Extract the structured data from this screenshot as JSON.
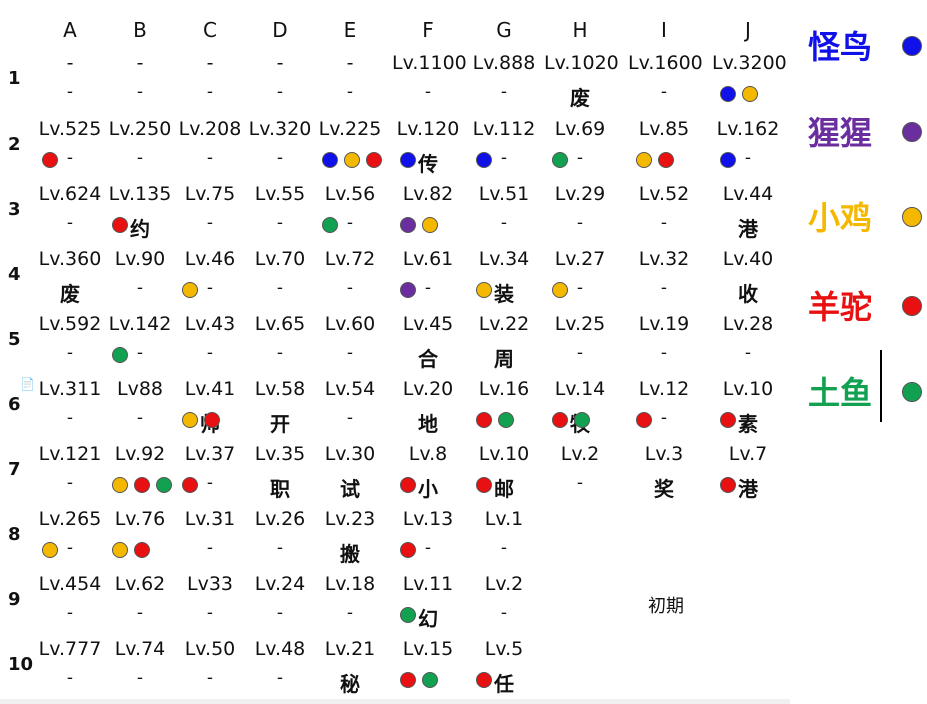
{
  "colors": {
    "blue": "#1010e8",
    "purple": "#6b2e9e",
    "yellow": "#f5b800",
    "red": "#e81010",
    "green": "#12a150"
  },
  "columns": [
    "A",
    "B",
    "C",
    "D",
    "E",
    "F",
    "G",
    "H",
    "I",
    "J"
  ],
  "rows": [
    {
      "label": "1",
      "cells": [
        {
          "lv": "-",
          "sub": "-"
        },
        {
          "lv": "-",
          "sub": "-"
        },
        {
          "lv": "-",
          "sub": "-"
        },
        {
          "lv": "-",
          "sub": "-"
        },
        {
          "lv": "-",
          "sub": "-"
        },
        {
          "lv": "Lv.1100",
          "sub": "-"
        },
        {
          "lv": "Lv.888",
          "sub": "-"
        },
        {
          "lv": "Lv.1020",
          "sub": "废"
        },
        {
          "lv": "Lv.1600",
          "sub": "-"
        },
        {
          "lv": "Lv.3200",
          "sub": "-",
          "dots": [
            "blue",
            "yellow"
          ]
        }
      ]
    },
    {
      "label": "2",
      "cells": [
        {
          "lv": "Lv.525",
          "sub": "-",
          "dots": [
            "red"
          ]
        },
        {
          "lv": "Lv.250",
          "sub": "-"
        },
        {
          "lv": "Lv.208",
          "sub": "-"
        },
        {
          "lv": "Lv.320",
          "sub": "-"
        },
        {
          "lv": "Lv.225",
          "sub": "-",
          "dots": [
            "blue",
            "yellow",
            "red"
          ]
        },
        {
          "lv": "Lv.120",
          "sub": "传",
          "dots": [
            "blue"
          ]
        },
        {
          "lv": "Lv.112",
          "sub": "-",
          "dots": [
            "blue"
          ]
        },
        {
          "lv": "Lv.69",
          "sub": "-",
          "dots": [
            "green"
          ]
        },
        {
          "lv": "Lv.85",
          "sub": "-",
          "dots": [
            "yellow",
            "red"
          ]
        },
        {
          "lv": "Lv.162",
          "sub": "-",
          "dots": [
            "blue"
          ]
        }
      ]
    },
    {
      "label": "3",
      "cells": [
        {
          "lv": "Lv.624",
          "sub": "-"
        },
        {
          "lv": "Lv.135",
          "sub": "约",
          "dots": [
            "red"
          ]
        },
        {
          "lv": "Lv.75",
          "sub": "-"
        },
        {
          "lv": "Lv.55",
          "sub": "-"
        },
        {
          "lv": "Lv.56",
          "sub": "-",
          "dots": [
            "green"
          ]
        },
        {
          "lv": "Lv.82",
          "sub": "-",
          "dots": [
            "purple",
            "yellow"
          ]
        },
        {
          "lv": "Lv.51",
          "sub": "-"
        },
        {
          "lv": "Lv.29",
          "sub": "-"
        },
        {
          "lv": "Lv.52",
          "sub": "-"
        },
        {
          "lv": "Lv.44",
          "sub": "港"
        }
      ]
    },
    {
      "label": "4",
      "cells": [
        {
          "lv": "Lv.360",
          "sub": "废"
        },
        {
          "lv": "Lv.90",
          "sub": "-"
        },
        {
          "lv": "Lv.46",
          "sub": "-",
          "dots": [
            "yellow"
          ]
        },
        {
          "lv": "Lv.70",
          "sub": "-"
        },
        {
          "lv": "Lv.72",
          "sub": "-"
        },
        {
          "lv": "Lv.61",
          "sub": "-",
          "dots": [
            "purple"
          ]
        },
        {
          "lv": "Lv.34",
          "sub": "装",
          "dots": [
            "yellow"
          ]
        },
        {
          "lv": "Lv.27",
          "sub": "-",
          "dots": [
            "yellow"
          ]
        },
        {
          "lv": "Lv.32",
          "sub": "-"
        },
        {
          "lv": "Lv.40",
          "sub": "收"
        }
      ]
    },
    {
      "label": "5",
      "cells": [
        {
          "lv": "Lv.592",
          "sub": "-"
        },
        {
          "lv": "Lv.142",
          "sub": "-",
          "dots": [
            "green"
          ]
        },
        {
          "lv": "Lv.43",
          "sub": "-"
        },
        {
          "lv": "Lv.65",
          "sub": "-"
        },
        {
          "lv": "Lv.60",
          "sub": "-"
        },
        {
          "lv": "Lv.45",
          "sub": "合"
        },
        {
          "lv": "Lv.22",
          "sub": "周"
        },
        {
          "lv": "Lv.25",
          "sub": "-"
        },
        {
          "lv": "Lv.19",
          "sub": "-"
        },
        {
          "lv": "Lv.28",
          "sub": "-"
        }
      ]
    },
    {
      "label": "6",
      "cells": [
        {
          "lv": "Lv.311",
          "sub": "-"
        },
        {
          "lv": "Lv88",
          "sub": "-"
        },
        {
          "lv": "Lv.41",
          "sub": "帅",
          "dots": [
            "yellow",
            "red"
          ]
        },
        {
          "lv": "Lv.58",
          "sub": "开"
        },
        {
          "lv": "Lv.54",
          "sub": "-"
        },
        {
          "lv": "Lv.20",
          "sub": "地"
        },
        {
          "lv": "Lv.16",
          "sub": "-",
          "dots": [
            "red",
            "green"
          ]
        },
        {
          "lv": "Lv.14",
          "sub": "牧",
          "dots": [
            "red",
            "green"
          ]
        },
        {
          "lv": "Lv.12",
          "sub": "-",
          "dots": [
            "red"
          ]
        },
        {
          "lv": "Lv.10",
          "sub": "素",
          "dots": [
            "red"
          ]
        }
      ]
    },
    {
      "label": "7",
      "cells": [
        {
          "lv": "Lv.121",
          "sub": "-"
        },
        {
          "lv": "Lv.92",
          "sub": "-",
          "dots": [
            "yellow",
            "red",
            "green"
          ]
        },
        {
          "lv": "Lv.37",
          "sub": "-",
          "dots": [
            "red"
          ]
        },
        {
          "lv": "Lv.35",
          "sub": "职"
        },
        {
          "lv": "Lv.30",
          "sub": "试"
        },
        {
          "lv": "Lv.8",
          "sub": "小",
          "dots": [
            "red"
          ]
        },
        {
          "lv": "Lv.10",
          "sub": "邮",
          "dots": [
            "red"
          ]
        },
        {
          "lv": "Lv.2",
          "sub": "-"
        },
        {
          "lv": "Lv.3",
          "sub": "奖"
        },
        {
          "lv": "Lv.7",
          "sub": "港",
          "dots": [
            "red"
          ]
        }
      ]
    },
    {
      "label": "8",
      "cells": [
        {
          "lv": "Lv.265",
          "sub": "-",
          "dots": [
            "yellow"
          ]
        },
        {
          "lv": "Lv.76",
          "sub": "-",
          "dots": [
            "yellow",
            "red"
          ]
        },
        {
          "lv": "Lv.31",
          "sub": "-"
        },
        {
          "lv": "Lv.26",
          "sub": "-"
        },
        {
          "lv": "Lv.23",
          "sub": "搬"
        },
        {
          "lv": "Lv.13",
          "sub": "-",
          "dots": [
            "red"
          ]
        },
        {
          "lv": "Lv.1",
          "sub": "-"
        },
        null,
        null,
        null
      ]
    },
    {
      "label": "9",
      "cells": [
        {
          "lv": "Lv.454",
          "sub": "-"
        },
        {
          "lv": "Lv.62",
          "sub": "-"
        },
        {
          "lv": "Lv33",
          "sub": "-"
        },
        {
          "lv": "Lv.24",
          "sub": "-"
        },
        {
          "lv": "Lv.18",
          "sub": "-"
        },
        {
          "lv": "Lv.11",
          "sub": "幻",
          "dots": [
            "green"
          ]
        },
        {
          "lv": "Lv.2",
          "sub": "-"
        },
        null,
        null,
        null
      ]
    },
    {
      "label": "10",
      "cells": [
        {
          "lv": "Lv.777",
          "sub": "-"
        },
        {
          "lv": "Lv.74",
          "sub": "-"
        },
        {
          "lv": "Lv.50",
          "sub": "-"
        },
        {
          "lv": "Lv.48",
          "sub": "-"
        },
        {
          "lv": "Lv.21",
          "sub": "秘"
        },
        {
          "lv": "Lv.15",
          "sub": "-",
          "dots": [
            "red",
            "green"
          ]
        },
        {
          "lv": "Lv.5",
          "sub": "任",
          "dots": [
            "red"
          ]
        },
        null,
        null,
        null
      ]
    }
  ],
  "note": "初期",
  "legend": [
    {
      "label": "怪鸟",
      "color": "blue"
    },
    {
      "label": "猩猩",
      "color": "purple"
    },
    {
      "label": "小鸡",
      "color": "yellow"
    },
    {
      "label": "羊驼",
      "color": "red"
    },
    {
      "label": "土鱼",
      "color": "green"
    }
  ]
}
